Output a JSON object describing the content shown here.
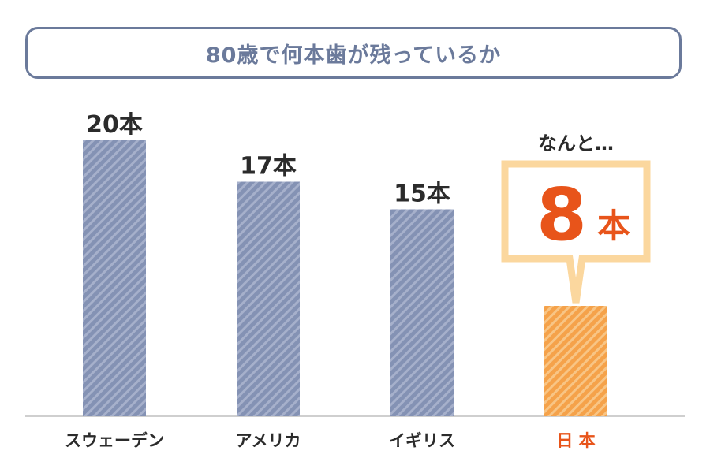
{
  "title": "80歳で何本歯が残っているか",
  "chart_data": {
    "type": "bar",
    "categories": [
      "スウェーデン",
      "アメリカ",
      "イギリス",
      "日 本"
    ],
    "values": [
      20,
      17,
      15,
      8
    ],
    "unit": "本",
    "value_labels": [
      "20本",
      "17本",
      "15本",
      "8"
    ],
    "ylim": [
      0,
      20
    ],
    "grid": false,
    "highlight_index": 3,
    "highlight_note": "なんと…",
    "colors": {
      "bar": "#8492b4",
      "bar_stripe": "#a6b0cb",
      "highlight_bar": "#f5a24a",
      "highlight_stripe": "#f8c585",
      "callout_border": "#fbd79e",
      "highlight_text": "#e8541a",
      "title": "#6b7a9b"
    }
  }
}
